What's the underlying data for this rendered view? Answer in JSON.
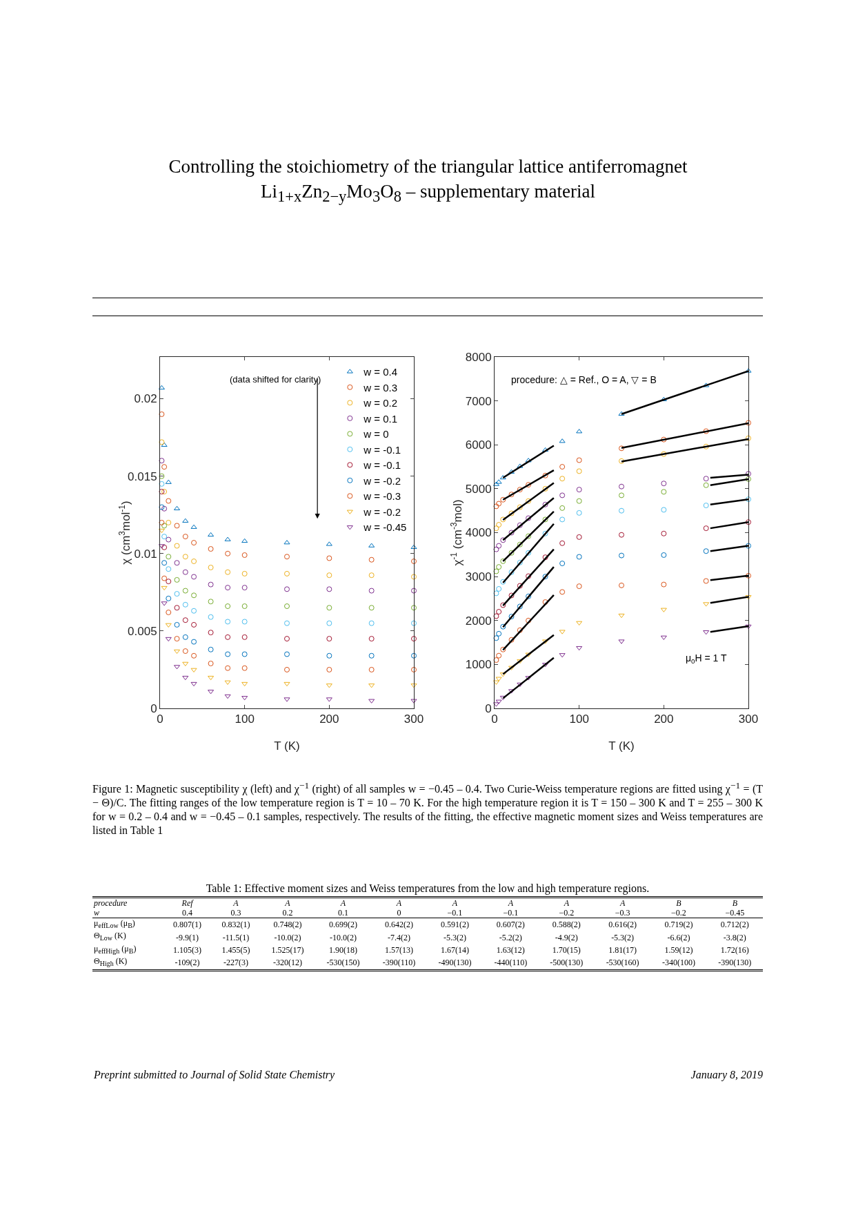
{
  "chart_data": [
    {
      "type": "scatter",
      "xlabel": "T (K)",
      "ylabel": "χ (cm$^{3}$mol$^{-1}$)",
      "xlim": [
        0,
        300
      ],
      "xticks": [
        0,
        100,
        200,
        300
      ],
      "ylim": [
        0,
        0.0227
      ],
      "yticks": [
        0,
        0.005,
        0.01,
        0.015,
        0.02
      ],
      "grid": false,
      "legend": "top right",
      "x": [
        2,
        5,
        10,
        20,
        30,
        40,
        60,
        80,
        100,
        150,
        200,
        250,
        300
      ],
      "series": [
        {
          "name": "w = 0.4",
          "color": "#0072bd",
          "marker": "triangle",
          "values": [
            0.0207,
            0.017,
            0.0146,
            0.0129,
            0.0121,
            0.0117,
            0.0112,
            0.0109,
            0.0108,
            0.0107,
            0.0106,
            0.0105,
            0.0104
          ]
        },
        {
          "name": "w = 0.3",
          "color": "#d95319",
          "marker": "circle",
          "values": [
            0.019,
            0.0156,
            0.0134,
            0.0118,
            0.0111,
            0.0107,
            0.0103,
            0.01,
            0.0099,
            0.0098,
            0.0097,
            0.0096,
            0.0095
          ]
        },
        {
          "name": "w = 0.2",
          "color": "#edb120",
          "marker": "circle",
          "values": [
            0.0172,
            0.014,
            0.012,
            0.0105,
            0.0098,
            0.0095,
            0.0091,
            0.0088,
            0.0087,
            0.0087,
            0.0086,
            0.0086,
            0.0085
          ]
        },
        {
          "name": "w = 0.1",
          "color": "#7e2f8e",
          "marker": "circle",
          "values": [
            0.016,
            0.0129,
            0.0109,
            0.0094,
            0.0088,
            0.0085,
            0.008,
            0.0078,
            0.0078,
            0.0077,
            0.0077,
            0.0076,
            0.0076
          ]
        },
        {
          "name": "w = 0",
          "color": "#77ac30",
          "marker": "circle",
          "values": [
            0.015,
            0.0118,
            0.0098,
            0.0083,
            0.0076,
            0.0073,
            0.0069,
            0.0066,
            0.0066,
            0.0066,
            0.0065,
            0.0065,
            0.0065
          ]
        },
        {
          "name": "w = -0.1",
          "color": "#4dbeee",
          "marker": "circle",
          "values": [
            0.0145,
            0.0111,
            0.009,
            0.0074,
            0.0067,
            0.0063,
            0.0059,
            0.0056,
            0.0056,
            0.0055,
            0.0055,
            0.0055,
            0.0055
          ]
        },
        {
          "name": "w = -0.1",
          "color": "#a2142f",
          "marker": "circle",
          "values": [
            0.014,
            0.0104,
            0.0082,
            0.0065,
            0.0057,
            0.0054,
            0.0049,
            0.0046,
            0.0046,
            0.0045,
            0.0045,
            0.0045,
            0.0045
          ]
        },
        {
          "name": "w = -0.2",
          "color": "#0072bd",
          "marker": "circle",
          "values": [
            0.013,
            0.0094,
            0.0071,
            0.0054,
            0.0046,
            0.0043,
            0.0038,
            0.0035,
            0.0035,
            0.0035,
            0.0034,
            0.0034,
            0.0034
          ]
        },
        {
          "name": "w = -0.3",
          "color": "#d95319",
          "marker": "circle",
          "values": [
            0.012,
            0.0084,
            0.0062,
            0.0045,
            0.0037,
            0.0034,
            0.0029,
            0.0026,
            0.0026,
            0.0025,
            0.0025,
            0.0025,
            0.0025
          ]
        },
        {
          "name": "w = -0.2",
          "color": "#edb120",
          "marker": "triangle-down",
          "values": [
            0.0115,
            0.0078,
            0.0054,
            0.0037,
            0.0029,
            0.0025,
            0.002,
            0.0017,
            0.0016,
            0.0016,
            0.0015,
            0.0015,
            0.0015
          ]
        },
        {
          "name": "w = -0.45",
          "color": "#7e2f8e",
          "marker": "triangle-down",
          "values": [
            0.0105,
            0.0068,
            0.0045,
            0.0027,
            0.002,
            0.0016,
            0.0011,
            0.0008,
            0.0007,
            0.0006,
            0.0006,
            0.0005,
            0.0005
          ]
        }
      ],
      "annotations": [
        "(data shifted for clarity)",
        "Controlling the stoichiometry of the triangular lattice antiferromagnet",
        "Li$_{1+x}$Zn$_{2−y}$Mo$_{3}$O$_{8}$ – supplementary material",
        "Figure 1:   Magnetic susceptibility χ (left) and χ$^{−1}$ (right) of all samples w = −0.45 – 0.4.  Two Curie-Weiss temperature regions are fitted using χ$^{−1}$ = (T − Θ)/C.  The fitting ranges of the low temperature region is T = 10 – 70 K. For the high temperature region it is T = 150 – 300 K and T = 255 – 300 K for w = 0.2 – 0.4 and w = −0.45 – 0.1 samples, respectively. The results of the fitting, the effective magnetic moment sizes and Weiss temperatures are listed in Table 1",
        "Table 1:   Effective moment sizes and Weiss temperatures from the low and high temperature regions.",
        "procedure",
        "Ref",
        "A",
        "A",
        "A",
        "A",
        "A",
        "A",
        "A",
        "A",
        "B",
        "B",
        "w",
        "0.4",
        "0.3",
        "0.2",
        "0.1",
        "0",
        "−0.1",
        "−0.1",
        "−0.2",
        "−0.3",
        "−0.2",
        "−0.45",
        "μ$_{effLow}$ (μ$_{B}$)",
        "0.807(1)",
        "0.832(1)",
        "0.748(2)",
        "0.699(2)",
        "0.642(2)",
        "0.591(2)",
        "0.607(2)",
        "0.588(2)",
        "0.616(2)",
        "0.719(2)",
        "0.712(2)",
        "Θ$_{Low}$ (K)",
        "-9.9(1)",
        "-11.5(1)",
        "-10.0(2)",
        "-10.0(2)",
        "-7.4(2)",
        "-5.3(2)",
        "-5.2(2)",
        "-4.9(2)",
        "-5.3(2)",
        "-6.6(2)",
        "-3.8(2)",
        "μ$_{effHigh}$ (μ$_{B}$)",
        "1.105(3)",
        "1.455(5)",
        "1.525(17)",
        "1.90(18)",
        "1.57(13)",
        "1.67(14)",
        "1.63(12)",
        "1.70(15)",
        "1.81(17)",
        "1.59(12)",
        "1.72(16)",
        "Θ$_{High}$ (K)",
        "-109(2)",
        "-227(3)",
        "-320(12)",
        "-530(150)",
        "-390(110)",
        "-490(130)",
        "-440(110)",
        "-500(130)",
        "-530(160)",
        "-340(100)",
        "-390(130)",
        "Preprint submitted to Journal of Solid State Chemistry",
        "January 8, 2019"
      ]
    },
    {
      "type": "scatter",
      "xlabel": "T (K)",
      "ylabel": "χ$^{-1}$ (cm$^{-3}$mol)",
      "xlim": [
        0,
        300
      ],
      "xticks": [
        0,
        100,
        200,
        300
      ],
      "ylim": [
        0,
        8000
      ],
      "yticks": [
        0,
        1000,
        2000,
        3000,
        4000,
        5000,
        6000,
        7000,
        8000
      ],
      "grid": false,
      "x": [
        2,
        5,
        10,
        20,
        30,
        40,
        60,
        80,
        100,
        150,
        200,
        250,
        300
      ],
      "series": [
        {
          "color": "#0072bd",
          "marker": "triangle",
          "values": [
            5100,
            5150,
            5250,
            5380,
            5510,
            5640,
            5880,
            6080,
            6300,
            6700,
            7030,
            7350,
            7680
          ]
        },
        {
          "color": "#d95319",
          "marker": "circle",
          "values": [
            4600,
            4660,
            4750,
            4870,
            4980,
            5090,
            5300,
            5500,
            5650,
            5920,
            6120,
            6310,
            6500
          ]
        },
        {
          "color": "#edb120",
          "marker": "circle",
          "values": [
            4100,
            4180,
            4300,
            4440,
            4580,
            4720,
            5000,
            5230,
            5400,
            5630,
            5790,
            5960,
            6150
          ]
        },
        {
          "color": "#7e2f8e",
          "marker": "circle",
          "values": [
            3620,
            3700,
            3830,
            4000,
            4170,
            4330,
            4640,
            4850,
            4980,
            5050,
            5120,
            5230,
            5340
          ]
        },
        {
          "color": "#77ac30",
          "marker": "circle",
          "values": [
            3120,
            3220,
            3350,
            3540,
            3730,
            3920,
            4300,
            4560,
            4720,
            4850,
            4930,
            5080,
            5220
          ]
        },
        {
          "color": "#4dbeee",
          "marker": "circle",
          "values": [
            2620,
            2720,
            2880,
            3100,
            3320,
            3540,
            3980,
            4300,
            4450,
            4500,
            4520,
            4620,
            4760
          ]
        },
        {
          "color": "#a2142f",
          "marker": "circle",
          "values": [
            2100,
            2200,
            2350,
            2570,
            2790,
            3010,
            3440,
            3760,
            3900,
            3950,
            3980,
            4100,
            4240
          ]
        },
        {
          "color": "#0072bd",
          "marker": "circle",
          "values": [
            1600,
            1700,
            1860,
            2090,
            2320,
            2550,
            3000,
            3300,
            3450,
            3480,
            3490,
            3580,
            3700
          ]
        },
        {
          "color": "#d95319",
          "marker": "circle",
          "values": [
            1100,
            1200,
            1340,
            1560,
            1780,
            2000,
            2420,
            2650,
            2780,
            2800,
            2820,
            2900,
            3020
          ]
        },
        {
          "color": "#edb120",
          "marker": "triangle-down",
          "values": [
            600,
            680,
            780,
            930,
            1080,
            1230,
            1530,
            1750,
            1950,
            2120,
            2250,
            2380,
            2540
          ]
        },
        {
          "color": "#7e2f8e",
          "marker": "triangle-down",
          "values": [
            100,
            160,
            250,
            400,
            550,
            700,
            1000,
            1220,
            1380,
            1530,
            1620,
            1740,
            1870
          ]
        },
        {
          "type": "line",
          "color": "#000000",
          "x": [
            10,
            70
          ],
          "values": [
            5250,
            5980
          ]
        },
        {
          "type": "line",
          "color": "#000000",
          "x": [
            150,
            300
          ],
          "values": [
            6700,
            7680
          ]
        },
        {
          "type": "line",
          "color": "#000000",
          "x": [
            10,
            70
          ],
          "values": [
            4750,
            5420
          ]
        },
        {
          "type": "line",
          "color": "#000000",
          "x": [
            150,
            300
          ],
          "values": [
            5930,
            6490
          ]
        },
        {
          "type": "line",
          "color": "#000000",
          "x": [
            10,
            70
          ],
          "values": [
            4290,
            5130
          ]
        },
        {
          "type": "line",
          "color": "#000000",
          "x": [
            150,
            300
          ],
          "values": [
            5620,
            6130
          ]
        },
        {
          "type": "line",
          "color": "#000000",
          "x": [
            10,
            70
          ],
          "values": [
            3830,
            4790
          ]
        },
        {
          "type": "line",
          "color": "#000000",
          "x": [
            255,
            300
          ],
          "values": [
            5250,
            5320
          ]
        },
        {
          "type": "line",
          "color": "#000000",
          "x": [
            10,
            70
          ],
          "values": [
            3350,
            4480
          ]
        },
        {
          "type": "line",
          "color": "#000000",
          "x": [
            255,
            300
          ],
          "values": [
            5080,
            5220
          ]
        },
        {
          "type": "line",
          "color": "#000000",
          "x": [
            10,
            70
          ],
          "values": [
            2860,
            4200
          ]
        },
        {
          "type": "line",
          "color": "#000000",
          "x": [
            255,
            300
          ],
          "values": [
            4640,
            4760
          ]
        },
        {
          "type": "line",
          "color": "#000000",
          "x": [
            10,
            70
          ],
          "values": [
            2340,
            3620
          ]
        },
        {
          "type": "line",
          "color": "#000000",
          "x": [
            255,
            300
          ],
          "values": [
            4100,
            4240
          ]
        },
        {
          "type": "line",
          "color": "#000000",
          "x": [
            10,
            70
          ],
          "values": [
            1850,
            3220
          ]
        },
        {
          "type": "line",
          "color": "#000000",
          "x": [
            255,
            300
          ],
          "values": [
            3580,
            3700
          ]
        },
        {
          "type": "line",
          "color": "#000000",
          "x": [
            10,
            70
          ],
          "values": [
            1330,
            2580
          ]
        },
        {
          "type": "line",
          "color": "#000000",
          "x": [
            255,
            300
          ],
          "values": [
            2920,
            3020
          ]
        },
        {
          "type": "line",
          "color": "#000000",
          "x": [
            10,
            70
          ],
          "values": [
            780,
            1670
          ]
        },
        {
          "type": "line",
          "color": "#000000",
          "x": [
            255,
            300
          ],
          "values": [
            2400,
            2540
          ]
        },
        {
          "type": "line",
          "color": "#000000",
          "x": [
            10,
            70
          ],
          "values": [
            230,
            1150
          ]
        },
        {
          "type": "line",
          "color": "#000000",
          "x": [
            255,
            300
          ],
          "values": [
            1740,
            1870
          ]
        }
      ],
      "annotations": [
        "procedure: △ = Ref., O = A, ▽ = B",
        "μ$_{0}$H = 1 T"
      ]
    }
  ]
}
